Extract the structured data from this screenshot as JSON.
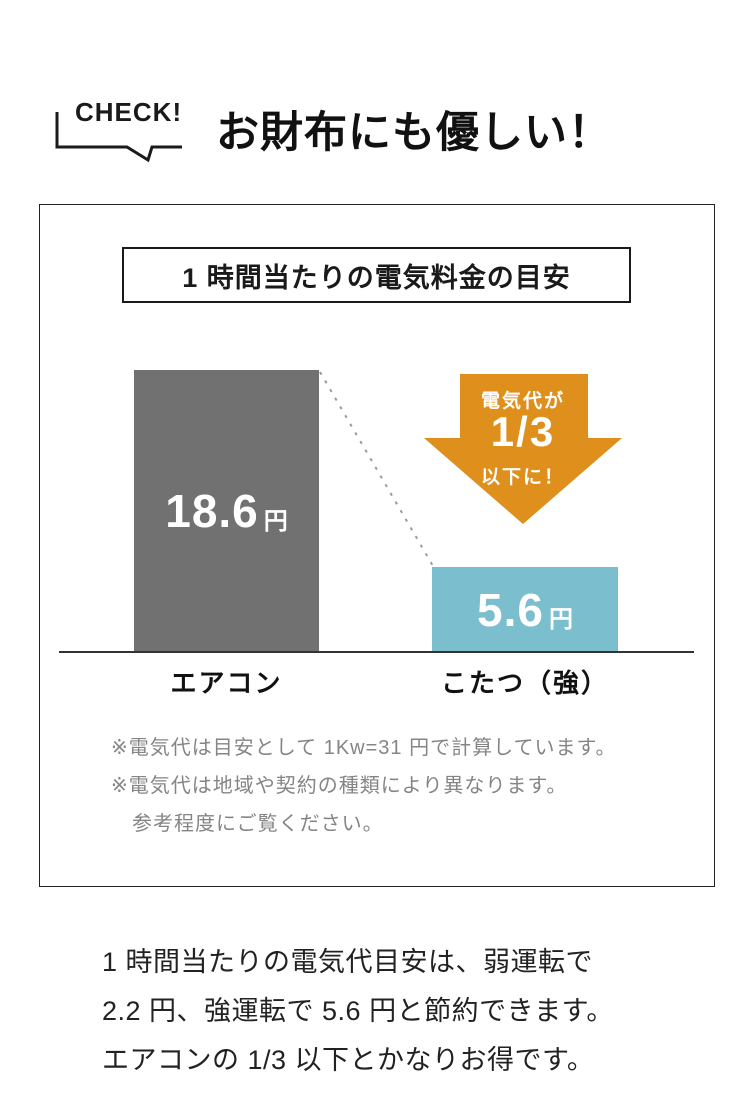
{
  "header": {
    "check_label": "CHECK!",
    "title": "お財布にも優しい！"
  },
  "panel": {
    "chart_title": "1 時間当たりの電気料金の目安",
    "notes": [
      "※電気代は目安として 1Kw=31 円で計算しています。",
      "※電気代は地域や契約の種類により異なります。",
      "参考程度にご覧ください。"
    ]
  },
  "chart_data": {
    "type": "bar",
    "title": "1 時間当たりの電気料金の目安",
    "categories": [
      "エアコン",
      "こたつ（強）"
    ],
    "values": [
      18.6,
      5.6
    ],
    "unit": "円",
    "ylim": [
      0,
      18.6
    ],
    "bar_colors": [
      "#717171",
      "#7bbecd"
    ],
    "baseline_axis": true,
    "annotation": {
      "line1": "電気代が",
      "fraction": "1/3",
      "line3": "以下に！",
      "direction": "down",
      "arrow_color": "#de8f1c"
    }
  },
  "footer": {
    "lines": [
      "1 時間当たりの電気代目安は、弱運転で",
      "2.2 円、強運転で 5.6 円と節約できます。",
      "エアコンの 1/3 以下とかなりお得です。"
    ]
  }
}
